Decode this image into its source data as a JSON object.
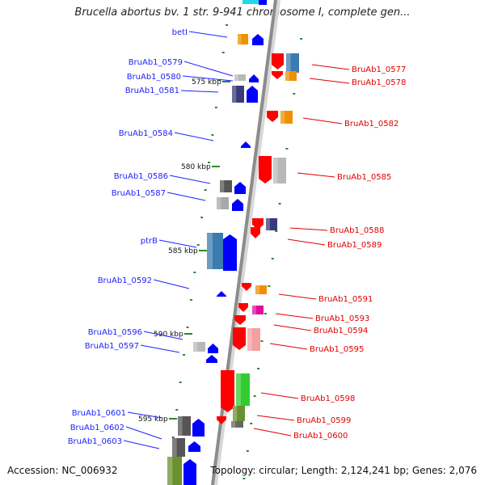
{
  "title": "Brucella abortus bv. 1 str. 9-941 chromosome I, complete gen...",
  "footer": {
    "accession_label": "Accession:",
    "accession": "NC_006932",
    "topology_label": "Topology:",
    "topology": "circular",
    "length_label": "Length:",
    "length": "2,124,241 bp",
    "genes_label": "Genes:",
    "genes": "2,076"
  },
  "scale_ticks": [
    "575 kbp",
    "580 kbp",
    "585 kbp",
    "590 kbp",
    "595 kbp"
  ],
  "genes_reverse": [
    {
      "name": "betI",
      "color": "#1e22ff"
    },
    {
      "name": "BruAb1_0579",
      "color": "#1e22ff"
    },
    {
      "name": "BruAb1_0580",
      "color": "#1e22ff"
    },
    {
      "name": "BruAb1_0581",
      "color": "#1e22ff"
    },
    {
      "name": "BruAb1_0584",
      "color": "#1e22ff"
    },
    {
      "name": "BruAb1_0586",
      "color": "#1e22ff"
    },
    {
      "name": "BruAb1_0587",
      "color": "#1e22ff"
    },
    {
      "name": "ptrB",
      "color": "#1e22ff"
    },
    {
      "name": "BruAb1_0592",
      "color": "#1e22ff"
    },
    {
      "name": "BruAb1_0596",
      "color": "#1e22ff"
    },
    {
      "name": "BruAb1_0597",
      "color": "#1e22ff"
    },
    {
      "name": "BruAb1_0601",
      "color": "#1e22ff"
    },
    {
      "name": "BruAb1_0602",
      "color": "#1e22ff"
    },
    {
      "name": "BruAb1_0603",
      "color": "#1e22ff"
    }
  ],
  "genes_forward": [
    {
      "name": "BruAb1_0577",
      "color": "#e00000"
    },
    {
      "name": "BruAb1_0578",
      "color": "#e00000"
    },
    {
      "name": "BruAb1_0582",
      "color": "#e00000"
    },
    {
      "name": "BruAb1_0585",
      "color": "#e00000"
    },
    {
      "name": "BruAb1_0588",
      "color": "#e00000"
    },
    {
      "name": "BruAb1_0589",
      "color": "#e00000"
    },
    {
      "name": "BruAb1_0591",
      "color": "#e00000"
    },
    {
      "name": "BruAb1_0593",
      "color": "#e00000"
    },
    {
      "name": "BruAb1_0594",
      "color": "#e00000"
    },
    {
      "name": "BruAb1_0595",
      "color": "#e00000"
    },
    {
      "name": "BruAb1_0598",
      "color": "#e00000"
    },
    {
      "name": "BruAb1_0599",
      "color": "#e00000"
    },
    {
      "name": "BruAb1_0600",
      "color": "#e00000"
    }
  ],
  "colors": {
    "backbone": "#999999",
    "forward_arrow": "#ff0000",
    "reverse_arrow": "#0000ff",
    "tick": "#2a8a2a"
  }
}
